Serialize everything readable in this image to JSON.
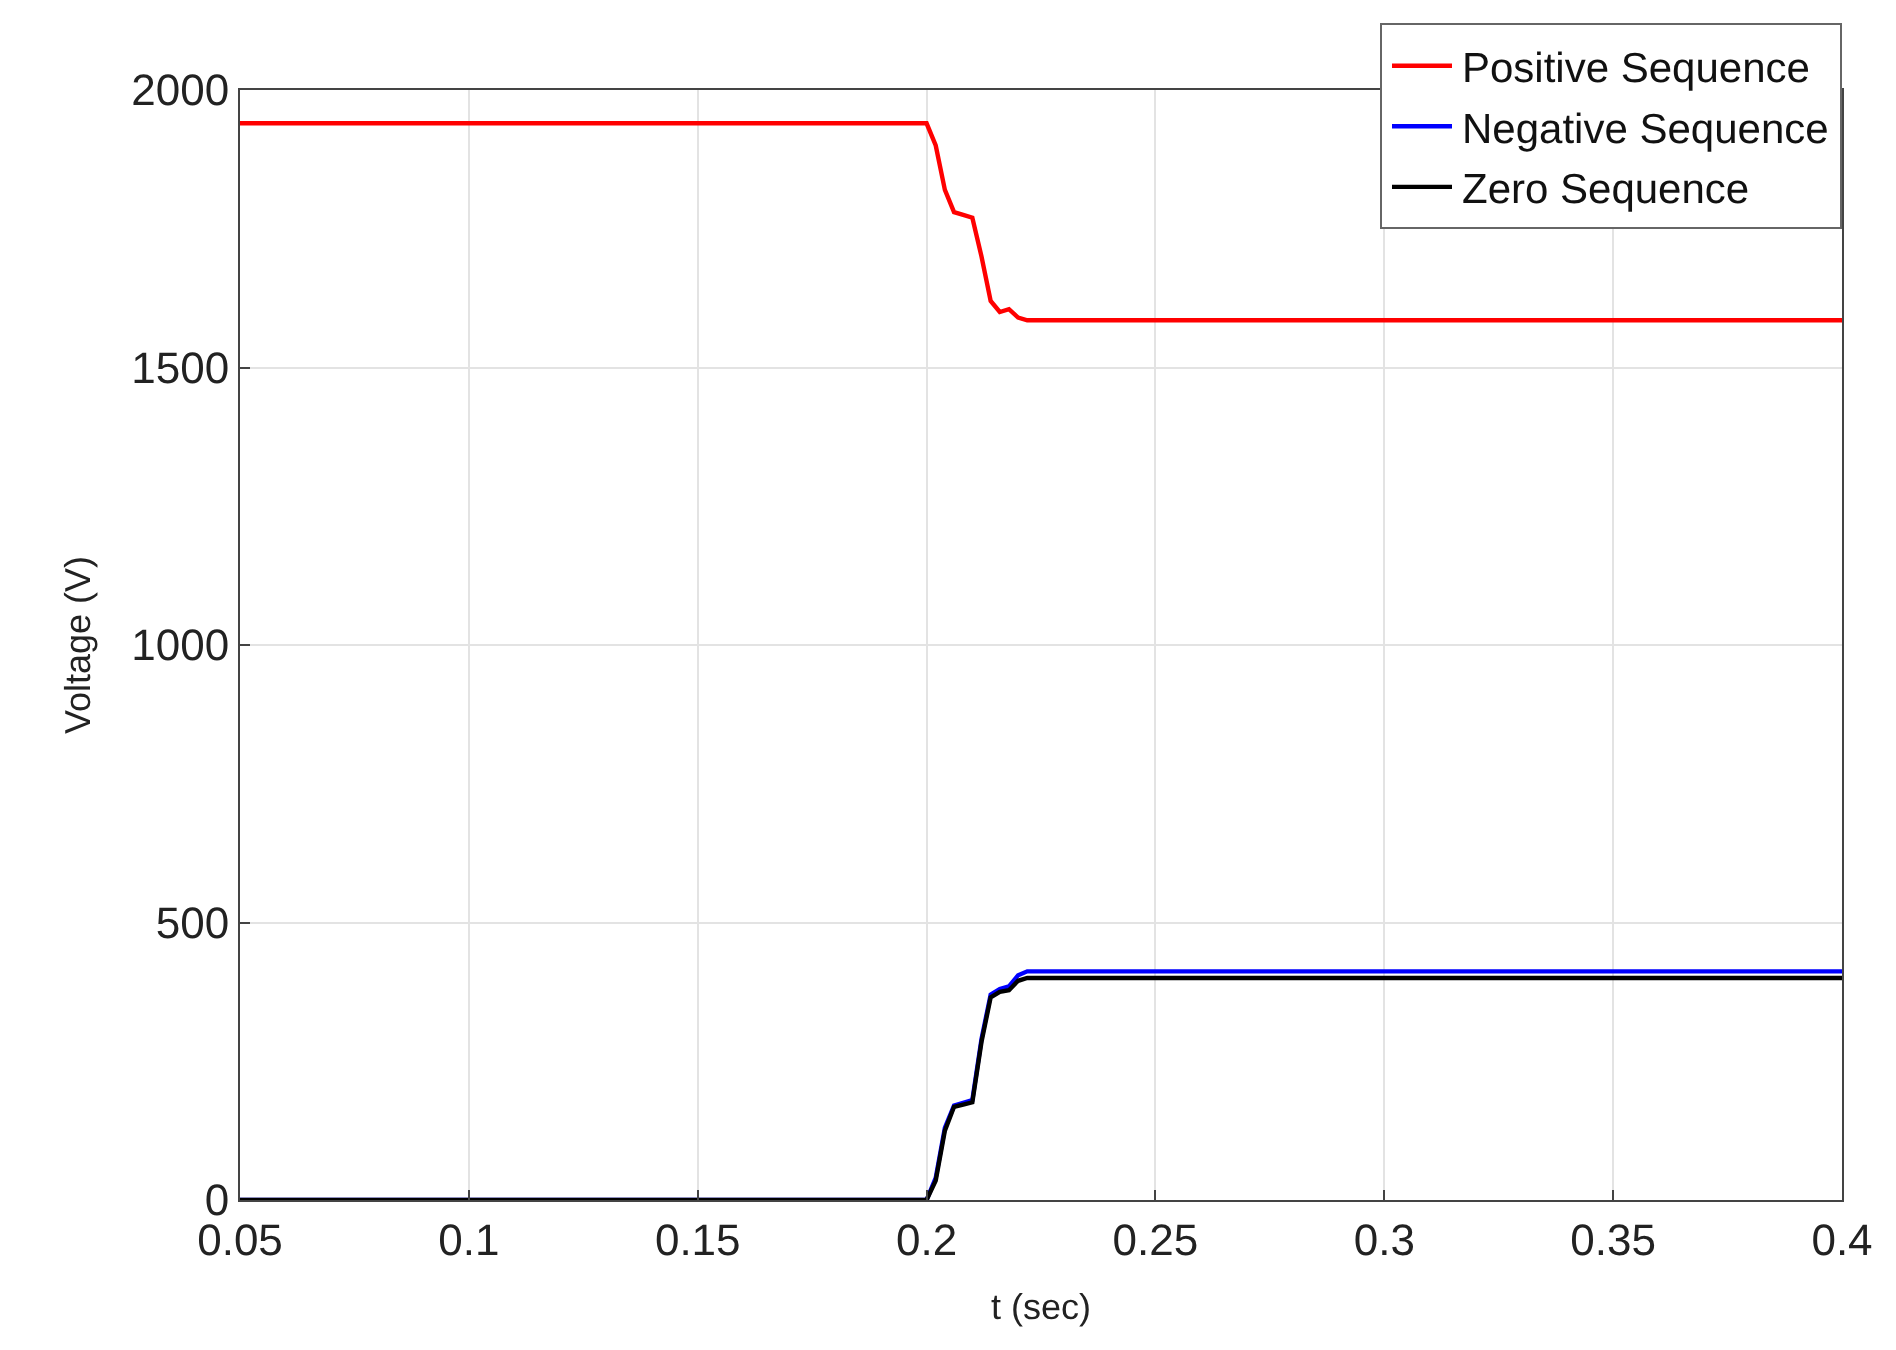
{
  "chart_data": {
    "type": "line",
    "xlabel": "t (sec)",
    "ylabel": "Voltage (V)",
    "xlim": [
      0.05,
      0.4
    ],
    "xticks": [
      0.05,
      0.1,
      0.15,
      0.2,
      0.25,
      0.3,
      0.35,
      0.4
    ],
    "ylim": [
      0,
      2000
    ],
    "yticks": [
      0,
      500,
      1000,
      1500,
      2000
    ],
    "grid": true,
    "legend": "top right",
    "line_style": "solid",
    "series": [
      {
        "name": "Positive Sequence",
        "color": "#ff0000",
        "x": [
          0.05,
          0.2,
          0.202,
          0.204,
          0.206,
          0.208,
          0.21,
          0.212,
          0.214,
          0.216,
          0.218,
          0.22,
          0.222,
          0.4
        ],
        "values": [
          1940,
          1940,
          1900,
          1820,
          1780,
          1775,
          1770,
          1700,
          1620,
          1600,
          1605,
          1590,
          1585,
          1585
        ]
      },
      {
        "name": "Negative Sequence",
        "color": "#0000ff",
        "x": [
          0.05,
          0.2,
          0.202,
          0.204,
          0.206,
          0.208,
          0.21,
          0.212,
          0.214,
          0.216,
          0.218,
          0.22,
          0.222,
          0.4
        ],
        "values": [
          0,
          0,
          40,
          130,
          170,
          175,
          180,
          290,
          370,
          380,
          385,
          405,
          412,
          412
        ]
      },
      {
        "name": "Zero Sequence",
        "color": "#000000",
        "x": [
          0.05,
          0.2,
          0.202,
          0.204,
          0.206,
          0.208,
          0.21,
          0.212,
          0.214,
          0.216,
          0.218,
          0.22,
          0.222,
          0.4
        ],
        "values": [
          0,
          0,
          35,
          125,
          168,
          172,
          176,
          285,
          365,
          375,
          378,
          395,
          400,
          400
        ]
      }
    ]
  }
}
